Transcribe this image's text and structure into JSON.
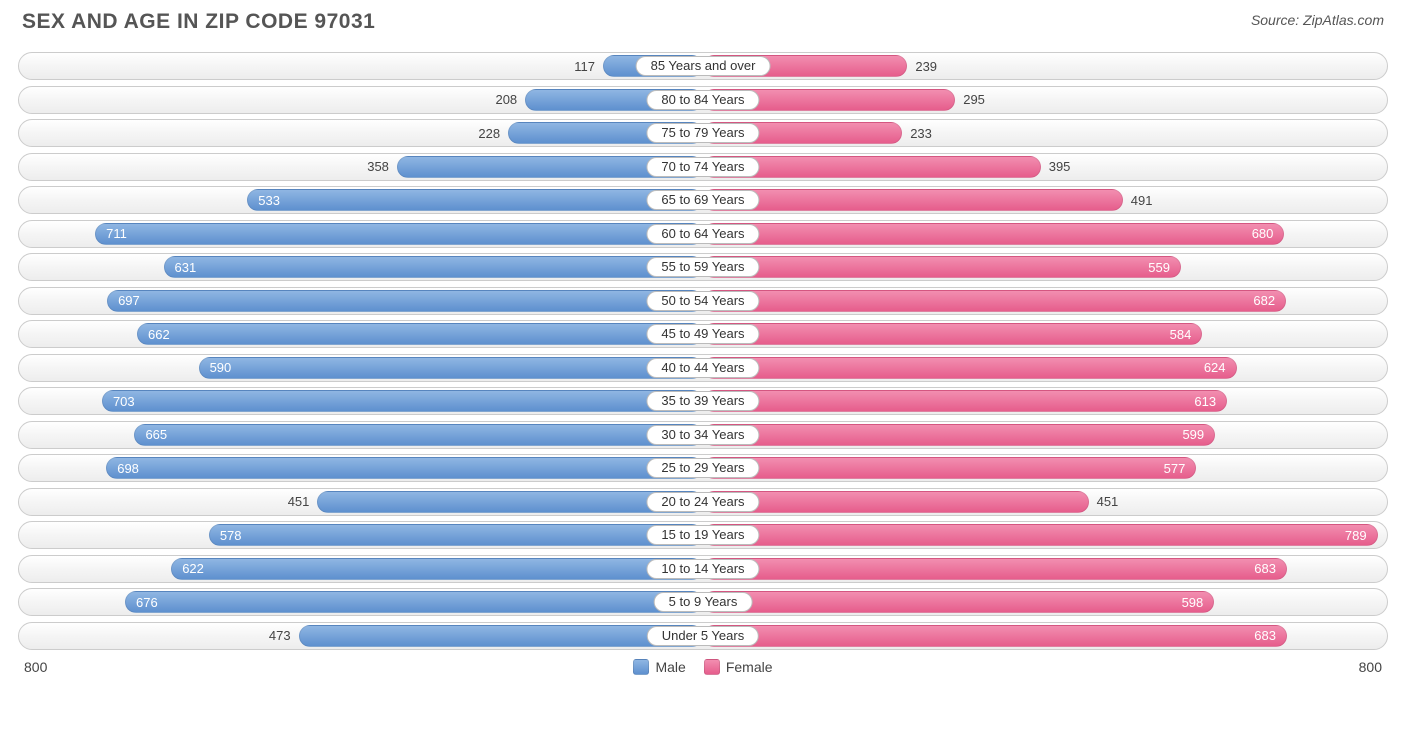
{
  "title": "SEX AND AGE IN ZIP CODE 97031",
  "source": "Source: ZipAtlas.com",
  "chart": {
    "type": "population-pyramid-bar",
    "axis_max": 800,
    "axis_label_left": "800",
    "axis_label_right": "800",
    "bar_label_threshold": 500,
    "colors": {
      "male_fill": "#6f9fd8",
      "male_gradient_top": "#8fb6e3",
      "male_gradient_bot": "#5e90cf",
      "female_fill": "#eb6e99",
      "female_gradient_top": "#f28eb0",
      "female_gradient_bot": "#e65d8c",
      "track_border": "#cccccc",
      "text_on_bar": "#ffffff",
      "text_off_bar": "#444444",
      "title_color": "#555555",
      "background": "#ffffff"
    },
    "legend": {
      "male": "Male",
      "female": "Female"
    },
    "rows": [
      {
        "label": "85 Years and over",
        "male": 117,
        "female": 239
      },
      {
        "label": "80 to 84 Years",
        "male": 208,
        "female": 295
      },
      {
        "label": "75 to 79 Years",
        "male": 228,
        "female": 233
      },
      {
        "label": "70 to 74 Years",
        "male": 358,
        "female": 395
      },
      {
        "label": "65 to 69 Years",
        "male": 533,
        "female": 491
      },
      {
        "label": "60 to 64 Years",
        "male": 711,
        "female": 680
      },
      {
        "label": "55 to 59 Years",
        "male": 631,
        "female": 559
      },
      {
        "label": "50 to 54 Years",
        "male": 697,
        "female": 682
      },
      {
        "label": "45 to 49 Years",
        "male": 662,
        "female": 584
      },
      {
        "label": "40 to 44 Years",
        "male": 590,
        "female": 624
      },
      {
        "label": "35 to 39 Years",
        "male": 703,
        "female": 613
      },
      {
        "label": "30 to 34 Years",
        "male": 665,
        "female": 599
      },
      {
        "label": "25 to 29 Years",
        "male": 698,
        "female": 577
      },
      {
        "label": "20 to 24 Years",
        "male": 451,
        "female": 451
      },
      {
        "label": "15 to 19 Years",
        "male": 578,
        "female": 789
      },
      {
        "label": "10 to 14 Years",
        "male": 622,
        "female": 683
      },
      {
        "label": "5 to 9 Years",
        "male": 676,
        "female": 598
      },
      {
        "label": "Under 5 Years",
        "male": 473,
        "female": 683
      }
    ]
  }
}
